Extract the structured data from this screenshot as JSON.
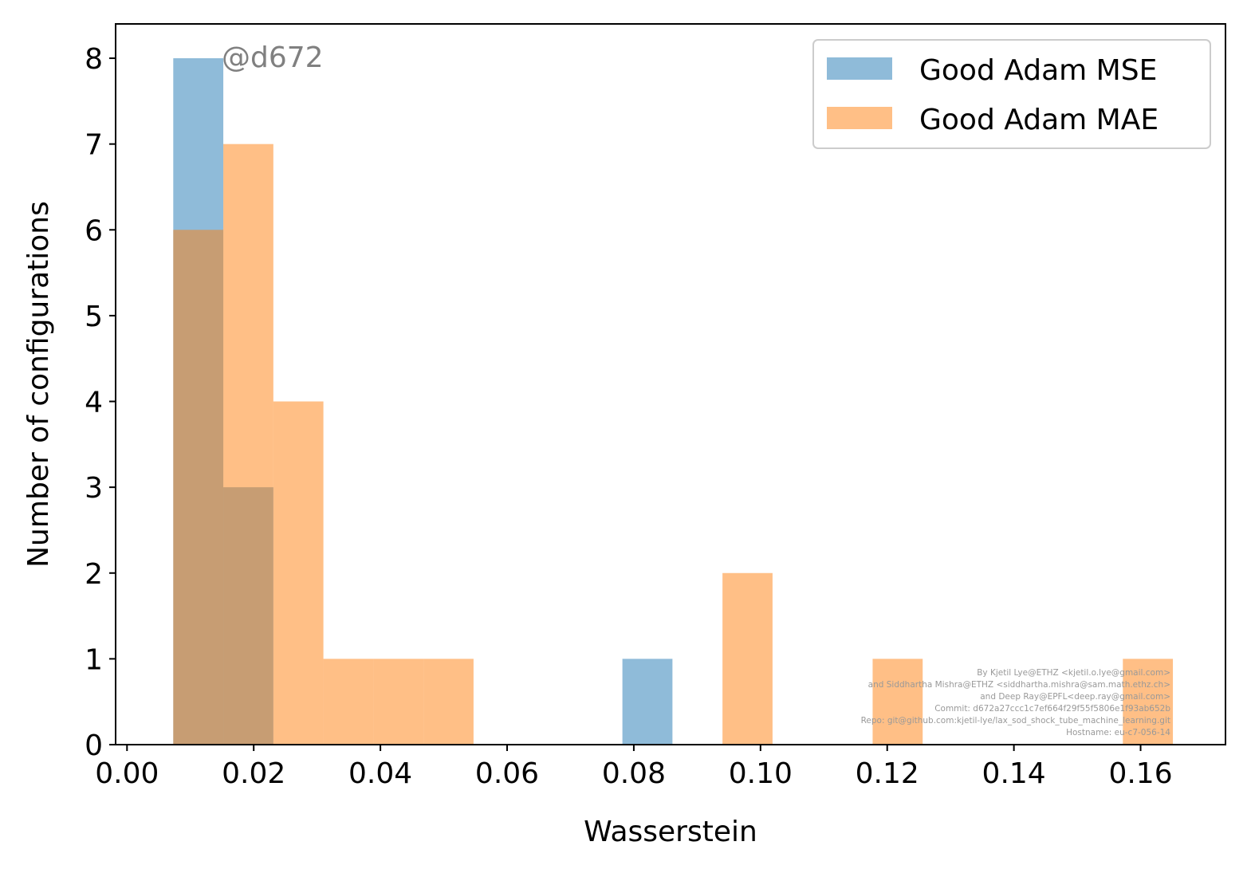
{
  "chart_data": {
    "type": "bar",
    "xlabel": "Wasserstein",
    "ylabel": "Number of configurations",
    "xlim": [
      -0.0018,
      0.1734
    ],
    "ylim": [
      0,
      8.4
    ],
    "xticks": [
      0.0,
      0.02,
      0.04,
      0.06,
      0.08,
      0.1,
      0.12,
      0.14,
      0.16
    ],
    "xtick_labels": [
      "0.00",
      "0.02",
      "0.04",
      "0.06",
      "0.08",
      "0.10",
      "0.12",
      "0.14",
      "0.16"
    ],
    "yticks": [
      0,
      1,
      2,
      3,
      4,
      5,
      6,
      7,
      8
    ],
    "ytick_labels": [
      "0",
      "1",
      "2",
      "3",
      "4",
      "5",
      "6",
      "7",
      "8"
    ],
    "legend_position": "top-right",
    "series": [
      {
        "name": "Good Adam MSE",
        "color": "#1f77b4",
        "alpha": 0.5,
        "bins": [
          {
            "x0": 0.0073,
            "x1": 0.0152,
            "count": 8
          },
          {
            "x0": 0.0152,
            "x1": 0.0231,
            "count": 3
          },
          {
            "x0": 0.0782,
            "x1": 0.0861,
            "count": 1
          }
        ]
      },
      {
        "name": "Good Adam MAE",
        "color": "#ff7f0e",
        "alpha": 0.5,
        "bins": [
          {
            "x0": 0.0073,
            "x1": 0.0152,
            "count": 6
          },
          {
            "x0": 0.0152,
            "x1": 0.0231,
            "count": 7
          },
          {
            "x0": 0.0231,
            "x1": 0.031,
            "count": 4
          },
          {
            "x0": 0.031,
            "x1": 0.0389,
            "count": 1
          },
          {
            "x0": 0.0389,
            "x1": 0.0468,
            "count": 1
          },
          {
            "x0": 0.0468,
            "x1": 0.0547,
            "count": 1
          },
          {
            "x0": 0.094,
            "x1": 0.1019,
            "count": 2
          },
          {
            "x0": 0.1177,
            "x1": 0.1256,
            "count": 1
          },
          {
            "x0": 0.1572,
            "x1": 0.1651,
            "count": 1
          }
        ]
      }
    ],
    "annotation": "@d672",
    "annotation_color": "#808080",
    "credits": [
      "By Kjetil Lye@ETHZ <kjetil.o.lye@gmail.com>",
      "and Siddhartha Mishra@ETHZ <siddhartha.mishra@sam.math.ethz.ch>",
      "and Deep Ray@EPFL<deep.ray@gmail.com>",
      "Commit: d672a27ccc1c7ef664f29f55f5806e1f93ab652b",
      "Repo: git@github.com:kjetil-lye/lax_sod_shock_tube_machine_learning.git",
      "Hostname: eu-c7-056-14"
    ],
    "credits_color": "#999999"
  }
}
